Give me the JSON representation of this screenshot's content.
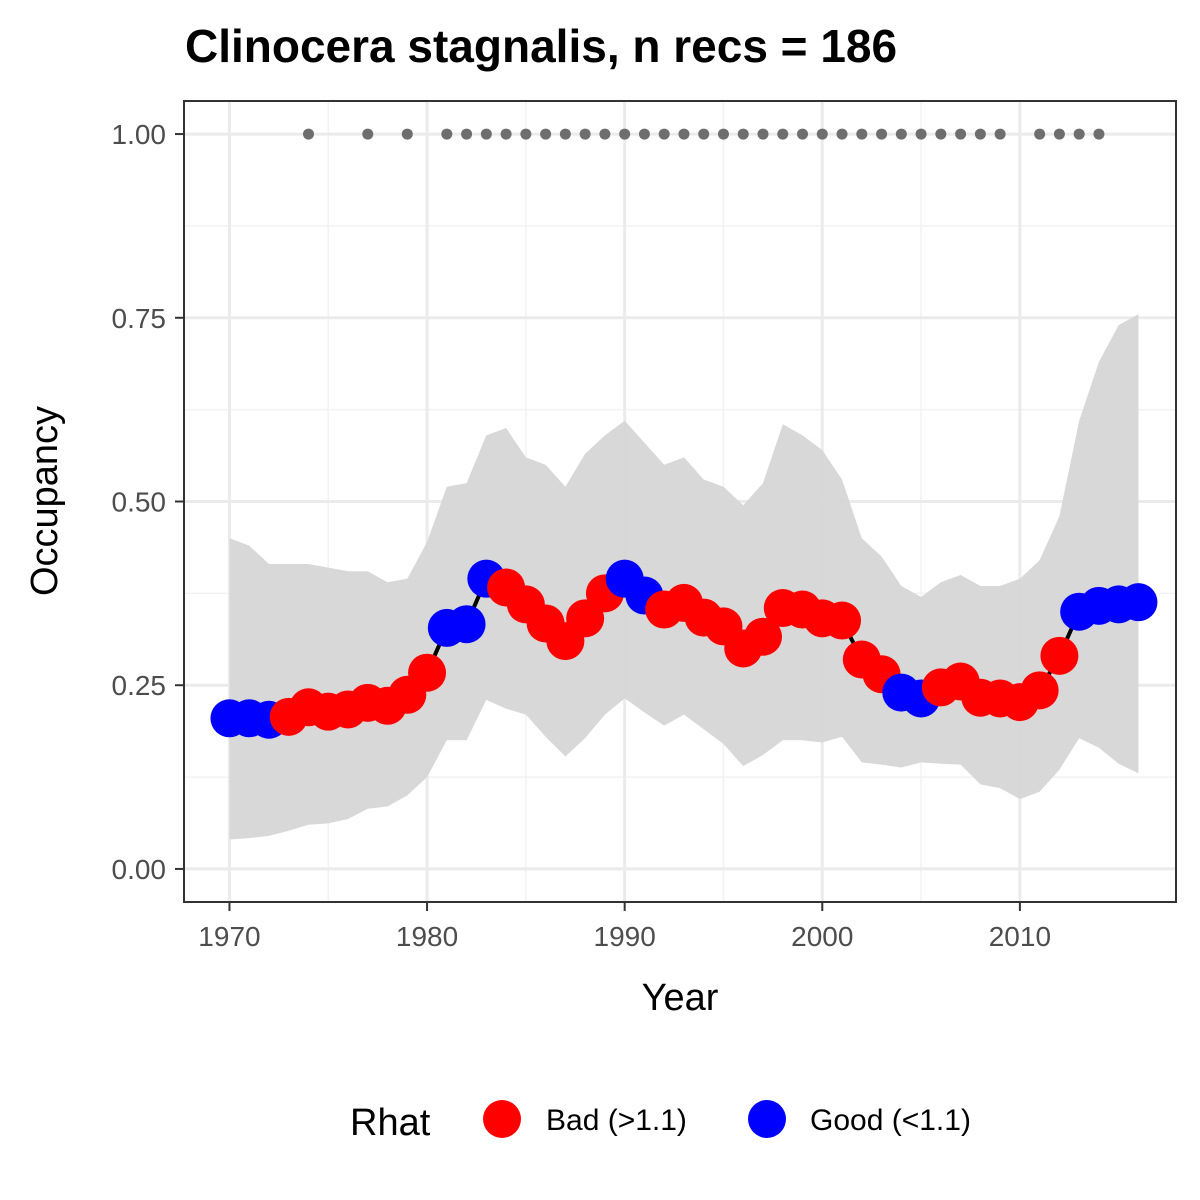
{
  "chart_data": {
    "type": "line",
    "title": "Clinocera stagnalis, n recs = 186",
    "xlabel": "Year",
    "ylabel": "Occupancy",
    "xlim": [
      1967.7,
      2017.9
    ],
    "ylim": [
      -0.045,
      1.045
    ],
    "grid": true,
    "x_ticks": [
      1970,
      1980,
      1990,
      2000,
      2010
    ],
    "x_tick_labels": [
      "1970",
      "1980",
      "1990",
      "2000",
      "2010"
    ],
    "y_ticks": [
      0,
      0.25,
      0.5,
      0.75,
      1.0
    ],
    "y_tick_labels": [
      "0.00",
      "0.25",
      "0.50",
      "0.75",
      "1.00"
    ],
    "legend": {
      "title": "Rhat",
      "position": "bottom",
      "entries": [
        {
          "label": "Bad (>1.1)",
          "color": "#ff0000"
        },
        {
          "label": "Good (<1.1)",
          "color": "#0000ff"
        }
      ]
    },
    "colors": {
      "bad": "#ff0000",
      "good": "#0000ff",
      "line": "#000000",
      "ribbon": "#d6d6d6",
      "records": "#6e6e6e"
    },
    "series": [
      {
        "x": [
          1970,
          1971,
          1972,
          1973,
          1974,
          1975,
          1976,
          1977,
          1978,
          1979,
          1980,
          1981,
          1982,
          1983,
          1984,
          1985,
          1986,
          1987,
          1988,
          1989,
          1990,
          1991,
          1992,
          1993,
          1994,
          1995,
          1996,
          1997,
          1998,
          1999,
          2000,
          2001,
          2002,
          2003,
          2004,
          2005,
          2006,
          2007,
          2008,
          2009,
          2010,
          2011,
          2012,
          2013,
          2014,
          2015,
          2016
        ],
        "values": [
          0.205,
          0.205,
          0.203,
          0.207,
          0.22,
          0.214,
          0.217,
          0.226,
          0.222,
          0.237,
          0.267,
          0.328,
          0.333,
          0.395,
          0.383,
          0.36,
          0.334,
          0.31,
          0.341,
          0.375,
          0.395,
          0.372,
          0.353,
          0.362,
          0.342,
          0.33,
          0.3,
          0.316,
          0.355,
          0.353,
          0.341,
          0.338,
          0.285,
          0.265,
          0.24,
          0.232,
          0.247,
          0.255,
          0.233,
          0.232,
          0.227,
          0.243,
          0.29,
          0.35,
          0.358,
          0.36,
          0.363
        ],
        "lower": [
          0.04,
          0.042,
          0.045,
          0.052,
          0.06,
          0.062,
          0.068,
          0.082,
          0.085,
          0.1,
          0.125,
          0.175,
          0.175,
          0.23,
          0.218,
          0.21,
          0.18,
          0.153,
          0.178,
          0.21,
          0.232,
          0.213,
          0.195,
          0.21,
          0.19,
          0.17,
          0.14,
          0.155,
          0.175,
          0.175,
          0.172,
          0.18,
          0.145,
          0.142,
          0.138,
          0.145,
          0.143,
          0.142,
          0.115,
          0.11,
          0.095,
          0.105,
          0.135,
          0.178,
          0.165,
          0.143,
          0.13
        ],
        "upper": [
          0.45,
          0.44,
          0.415,
          0.415,
          0.415,
          0.41,
          0.405,
          0.405,
          0.39,
          0.395,
          0.445,
          0.52,
          0.525,
          0.59,
          0.6,
          0.56,
          0.55,
          0.52,
          0.565,
          0.59,
          0.61,
          0.58,
          0.55,
          0.56,
          0.53,
          0.52,
          0.495,
          0.525,
          0.605,
          0.59,
          0.57,
          0.53,
          0.45,
          0.425,
          0.385,
          0.37,
          0.39,
          0.4,
          0.385,
          0.385,
          0.395,
          0.42,
          0.48,
          0.61,
          0.69,
          0.74,
          0.755
        ],
        "rhat": [
          "Good",
          "Good",
          "Good",
          "Bad",
          "Bad",
          "Bad",
          "Bad",
          "Bad",
          "Bad",
          "Bad",
          "Bad",
          "Good",
          "Good",
          "Good",
          "Bad",
          "Bad",
          "Bad",
          "Bad",
          "Bad",
          "Bad",
          "Good",
          "Good",
          "Bad",
          "Bad",
          "Bad",
          "Bad",
          "Bad",
          "Bad",
          "Bad",
          "Bad",
          "Bad",
          "Bad",
          "Bad",
          "Bad",
          "Good",
          "Good",
          "Bad",
          "Bad",
          "Bad",
          "Bad",
          "Bad",
          "Bad",
          "Bad",
          "Good",
          "Good",
          "Good",
          "Good"
        ]
      }
    ],
    "record_years": {
      "y": 1.0,
      "x": [
        1974,
        1977,
        1979,
        1981,
        1982,
        1983,
        1984,
        1985,
        1986,
        1987,
        1988,
        1989,
        1990,
        1991,
        1992,
        1993,
        1994,
        1995,
        1996,
        1997,
        1998,
        1999,
        2000,
        2001,
        2002,
        2003,
        2004,
        2005,
        2006,
        2007,
        2008,
        2009,
        2011,
        2012,
        2013,
        2014
      ]
    }
  }
}
